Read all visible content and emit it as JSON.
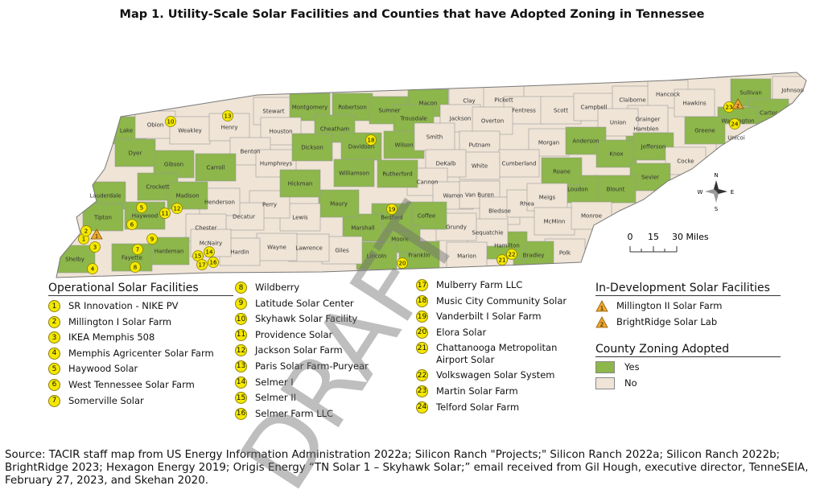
{
  "title": "Map 1.  Utility-Scale Solar Facilities and Counties that have Adopted Zoning in Tennessee",
  "map": {
    "counties": [
      {
        "name": "Lake",
        "zoned": true
      },
      {
        "name": "Obion",
        "zoned": false
      },
      {
        "name": "Weakley",
        "zoned": false
      },
      {
        "name": "Henry",
        "zoned": false
      },
      {
        "name": "Stewart",
        "zoned": false
      },
      {
        "name": "Montgomery",
        "zoned": true
      },
      {
        "name": "Robertson",
        "zoned": true
      },
      {
        "name": "Sumner",
        "zoned": true
      },
      {
        "name": "Macon",
        "zoned": true
      },
      {
        "name": "Trousdale",
        "zoned": true
      },
      {
        "name": "Clay",
        "zoned": false
      },
      {
        "name": "Pickett",
        "zoned": false
      },
      {
        "name": "Fentress",
        "zoned": false
      },
      {
        "name": "Scott",
        "zoned": false
      },
      {
        "name": "Campbell",
        "zoned": false
      },
      {
        "name": "Claiborne",
        "zoned": false
      },
      {
        "name": "Hancock",
        "zoned": false
      },
      {
        "name": "Hawkins",
        "zoned": false
      },
      {
        "name": "Sullivan",
        "zoned": true
      },
      {
        "name": "Johnson",
        "zoned": false
      },
      {
        "name": "Carter",
        "zoned": true
      },
      {
        "name": "Washington",
        "zoned": true
      },
      {
        "name": "Unicoi",
        "zoned": false
      },
      {
        "name": "Greene",
        "zoned": true
      },
      {
        "name": "Hamblen",
        "zoned": true
      },
      {
        "name": "Grainger",
        "zoned": false
      },
      {
        "name": "Union",
        "zoned": false
      },
      {
        "name": "Jackson",
        "zoned": false
      },
      {
        "name": "Overton",
        "zoned": false
      },
      {
        "name": "Cheatham",
        "zoned": true
      },
      {
        "name": "Houston",
        "zoned": false
      },
      {
        "name": "Benton",
        "zoned": false
      },
      {
        "name": "Humphreys",
        "zoned": false
      },
      {
        "name": "Dickson",
        "zoned": true
      },
      {
        "name": "Davidson",
        "zoned": true
      },
      {
        "name": "Wilson",
        "zoned": true
      },
      {
        "name": "Smith",
        "zoned": false
      },
      {
        "name": "Putnam",
        "zoned": false
      },
      {
        "name": "Morgan",
        "zoned": false
      },
      {
        "name": "Anderson",
        "zoned": true
      },
      {
        "name": "Knox",
        "zoned": true
      },
      {
        "name": "Jefferson",
        "zoned": true
      },
      {
        "name": "Cocke",
        "zoned": false
      },
      {
        "name": "Sevier",
        "zoned": true
      },
      {
        "name": "Blount",
        "zoned": true
      },
      {
        "name": "Loudon",
        "zoned": true
      },
      {
        "name": "Roane",
        "zoned": true
      },
      {
        "name": "Cumberland",
        "zoned": false
      },
      {
        "name": "White",
        "zoned": false
      },
      {
        "name": "DeKalb",
        "zoned": false
      },
      {
        "name": "Cannon",
        "zoned": false
      },
      {
        "name": "Warren",
        "zoned": false
      },
      {
        "name": "Van Buren",
        "zoned": false
      },
      {
        "name": "Bledsoe",
        "zoned": false
      },
      {
        "name": "Rhea",
        "zoned": false
      },
      {
        "name": "Meigs",
        "zoned": false
      },
      {
        "name": "McMinn",
        "zoned": false
      },
      {
        "name": "Monroe",
        "zoned": false
      },
      {
        "name": "Polk",
        "zoned": false
      },
      {
        "name": "Bradley",
        "zoned": true
      },
      {
        "name": "Hamilton",
        "zoned": true
      },
      {
        "name": "Sequatchie",
        "zoned": false
      },
      {
        "name": "Marion",
        "zoned": false
      },
      {
        "name": "Grundy",
        "zoned": false
      },
      {
        "name": "Franklin",
        "zoned": true
      },
      {
        "name": "Coffee",
        "zoned": true
      },
      {
        "name": "Moore",
        "zoned": true
      },
      {
        "name": "Lincoln",
        "zoned": true
      },
      {
        "name": "Bedford",
        "zoned": true
      },
      {
        "name": "Marshall",
        "zoned": true
      },
      {
        "name": "Rutherford",
        "zoned": true
      },
      {
        "name": "Williamson",
        "zoned": true
      },
      {
        "name": "Maury",
        "zoned": true
      },
      {
        "name": "Giles",
        "zoned": false
      },
      {
        "name": "Lawrence",
        "zoned": false
      },
      {
        "name": "Wayne",
        "zoned": false
      },
      {
        "name": "Hardin",
        "zoned": false
      },
      {
        "name": "Lewis",
        "zoned": false
      },
      {
        "name": "Perry",
        "zoned": false
      },
      {
        "name": "Hickman",
        "zoned": true
      },
      {
        "name": "Decatur",
        "zoned": false
      },
      {
        "name": "Henderson",
        "zoned": false
      },
      {
        "name": "Carroll",
        "zoned": true
      },
      {
        "name": "Gibson",
        "zoned": true
      },
      {
        "name": "Dyer",
        "zoned": true
      },
      {
        "name": "Crockett",
        "zoned": true
      },
      {
        "name": "Madison",
        "zoned": true
      },
      {
        "name": "Lauderdale",
        "zoned": true
      },
      {
        "name": "Haywood",
        "zoned": true
      },
      {
        "name": "Tipton",
        "zoned": true
      },
      {
        "name": "Chester",
        "zoned": false
      },
      {
        "name": "McNairy",
        "zoned": false
      },
      {
        "name": "Hardeman",
        "zoned": true
      },
      {
        "name": "Fayette",
        "zoned": true
      },
      {
        "name": "Shelby",
        "zoned": true
      }
    ],
    "scale_labels": [
      "0",
      "15",
      "30 Miles"
    ],
    "compass": {
      "n": "N",
      "s": "S",
      "e": "E",
      "w": "W"
    },
    "watermark": "DRAFT"
  },
  "legend": {
    "operational_title": "Operational Solar Facilities",
    "facilities": [
      {
        "number": "1",
        "name": "SR Innovation - NIKE PV"
      },
      {
        "number": "2",
        "name": "Millington I Solar Farm"
      },
      {
        "number": "3",
        "name": "IKEA Memphis 508"
      },
      {
        "number": "4",
        "name": "Memphis Agricenter Solar Farm"
      },
      {
        "number": "5",
        "name": "Haywood Solar"
      },
      {
        "number": "6",
        "name": "West Tennessee Solar Farm"
      },
      {
        "number": "7",
        "name": "Somerville Solar"
      },
      {
        "number": "8",
        "name": "Wildberry"
      },
      {
        "number": "9",
        "name": "Latitude Solar Center"
      },
      {
        "number": "10",
        "name": "Skyhawk Solar Facility"
      },
      {
        "number": "11",
        "name": "Providence Solar"
      },
      {
        "number": "12",
        "name": "Jackson Solar Farm"
      },
      {
        "number": "13",
        "name": "Paris Solar Farm-Puryear"
      },
      {
        "number": "14",
        "name": "Selmer I"
      },
      {
        "number": "15",
        "name": "Selmer II"
      },
      {
        "number": "16",
        "name": "Selmer Farm LLC"
      },
      {
        "number": "17",
        "name": "Mulberry Farm LLC"
      },
      {
        "number": "18",
        "name": "Music City Community Solar"
      },
      {
        "number": "19",
        "name": "Vanderbilt I Solar Farm"
      },
      {
        "number": "20",
        "name": "Elora Solar"
      },
      {
        "number": "21",
        "name": "Chattanooga Metropolitan Airport Solar"
      },
      {
        "number": "22",
        "name": "Volkswagen Solar System"
      },
      {
        "number": "23",
        "name": "Martin Solar Farm"
      },
      {
        "number": "24",
        "name": "Telford Solar Farm"
      }
    ],
    "development_title": "In-Development Solar Facilities",
    "development": [
      {
        "number": "1",
        "name": "Millington II Solar Farm"
      },
      {
        "number": "2",
        "name": "BrightRidge Solar Lab"
      }
    ],
    "zoning_title": "County Zoning Adopted",
    "zoning": [
      {
        "label": "Yes",
        "zoned": true
      },
      {
        "label": "No",
        "zoned": false
      }
    ]
  },
  "source": "Source:  TACIR staff map from US Energy Information Administration 2022a; Silicon Ranch \"Projects;\" Silicon Ranch 2022a; Silicon Ranch 2022b; BrightRidge 2023; Hexagon Energy 2019; Origis Energy “TN Solar 1 – Skyhawk Solar;” email received from Gil Hough, executive director, TenneSEIA, February 27, 2023, and Skehan 2020."
}
